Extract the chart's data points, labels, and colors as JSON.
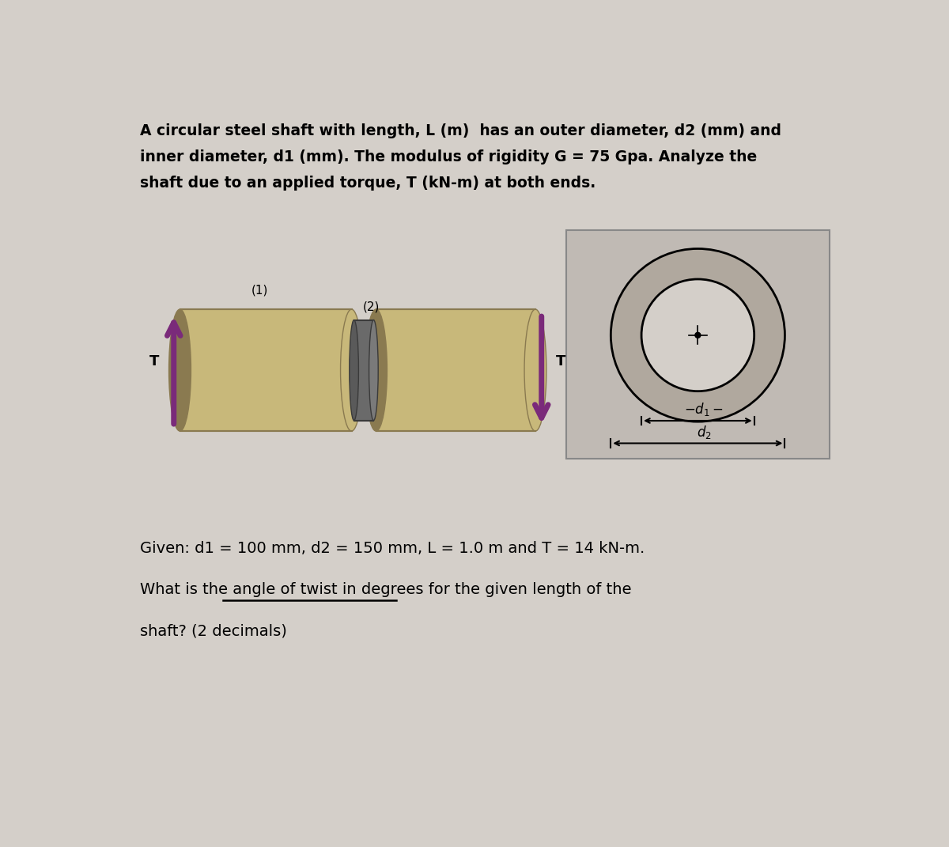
{
  "bg_color": "#d4cfc9",
  "title_line1": "A circular steel shaft with length, L (m)  has an outer diameter, d2 (mm) and",
  "title_line2": "inner diameter, d1 (mm). The modulus of rigidity G = 75 Gpa. Analyze the",
  "title_line3": "shaft due to an applied torque, T (kN-m) at both ends.",
  "given_line1": "Given: d1 = 100 mm, d2 = 150 mm, L = 1.0 m and T = 14 kN-m.",
  "given_prefix": "What is the ",
  "given_underline": "angle of twist in degrees",
  "given_suffix": " for the given length of the",
  "given_line3": "shaft? (2 decimals)",
  "arrow_color": "#7a2a7a",
  "shaft_color_light": "#c8b87a",
  "shaft_color_dark": "#8a7a50",
  "label1": "(1)",
  "label2": "(2)",
  "label_T": "T",
  "box_bg": "#c0bab4",
  "circle_fill": "#b0a89e",
  "connector_color": "#6a6a6a",
  "connector_dark": "#3a3a3a"
}
